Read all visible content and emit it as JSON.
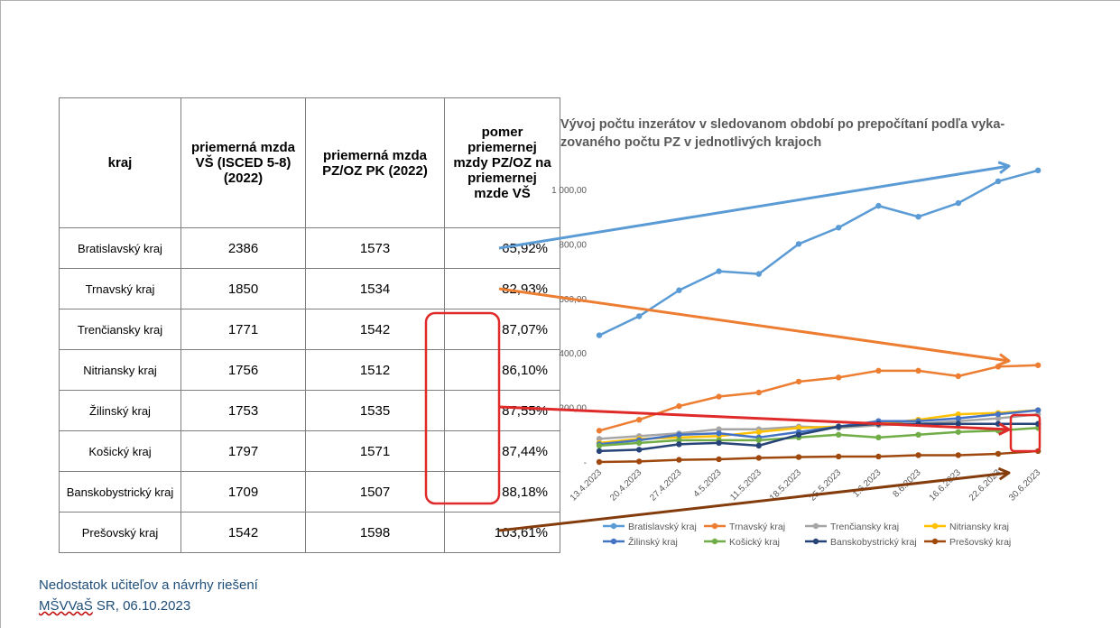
{
  "table": {
    "headers": {
      "kraj": "kraj",
      "mzda_vs": "priemerná mzda VŠ (ISCED 5-8) (2022)",
      "mzda_pz": "priemerná mzda PZ/OZ PK (2022)",
      "pomer": "pomer priemernej mzdy PZ/OZ na priemernej mzde VŠ"
    },
    "rows": [
      {
        "kraj": "Bratislavský kraj",
        "vs": "2386",
        "pz": "1573",
        "pomer": "65,92%"
      },
      {
        "kraj": "Trnavský kraj",
        "vs": "1850",
        "pz": "1534",
        "pomer": "82,93%"
      },
      {
        "kraj": "Trenčiansky kraj",
        "vs": "1771",
        "pz": "1542",
        "pomer": "87,07%"
      },
      {
        "kraj": "Nitriansky kraj",
        "vs": "1756",
        "pz": "1512",
        "pomer": "86,10%"
      },
      {
        "kraj": "Žilinský kraj",
        "vs": "1753",
        "pz": "1535",
        "pomer": "87,55%"
      },
      {
        "kraj": "Košický kraj",
        "vs": "1797",
        "pz": "1571",
        "pomer": "87,44%"
      },
      {
        "kraj": "Banskobystrický kraj",
        "vs": "1709",
        "pz": "1507",
        "pomer": "88,18%"
      },
      {
        "kraj": "Prešovský kraj",
        "vs": "1542",
        "pz": "1598",
        "pomer": "103,61%"
      }
    ]
  },
  "chart_data": {
    "type": "line",
    "title": "Vývoj počtu inzerátov v sledovanom období po prepočítaní podľa vyka- zovaného počtu PZ v jednotlivých krajoch",
    "xlabel": "",
    "ylabel": "",
    "ylim": [
      0,
      1000
    ],
    "grid": false,
    "legend": "bottom",
    "categories": [
      "13.4.2023",
      "20.4.2023",
      "27.4.2023",
      "4.5.2023",
      "11.5.2023",
      "18.5.2023",
      "25.5.2023",
      "1.6.2023",
      "8.6.2023",
      "16.6.2023",
      "22.6.2023",
      "30.6.2023"
    ],
    "y_ticks": [
      {
        "value": 1000,
        "label": "1 000,00"
      },
      {
        "value": 800,
        "label": "800,00"
      },
      {
        "value": 600,
        "label": "600,00"
      },
      {
        "value": 400,
        "label": "400,00"
      },
      {
        "value": 200,
        "label": "200,00"
      },
      {
        "value": 0,
        "label": "-"
      }
    ],
    "series": [
      {
        "name": "Bratislavský kraj",
        "color": "#5b9bd5",
        "values": [
          465,
          535,
          630,
          700,
          690,
          800,
          860,
          940,
          900,
          950,
          1030,
          1070
        ]
      },
      {
        "name": "Trnavský kraj",
        "color": "#ed7d31",
        "values": [
          115,
          155,
          205,
          240,
          255,
          295,
          310,
          335,
          335,
          315,
          350,
          355
        ]
      },
      {
        "name": "Trenčiansky kraj",
        "color": "#a5a5a5",
        "values": [
          85,
          95,
          105,
          120,
          120,
          130,
          125,
          135,
          140,
          150,
          160,
          175
        ]
      },
      {
        "name": "Nitriansky kraj",
        "color": "#ffc000",
        "values": [
          70,
          85,
          90,
          95,
          110,
          125,
          130,
          140,
          155,
          175,
          180,
          190
        ]
      },
      {
        "name": "Žilinský kraj",
        "color": "#4472c4",
        "values": [
          65,
          80,
          100,
          105,
          90,
          110,
          130,
          150,
          150,
          160,
          175,
          190
        ]
      },
      {
        "name": "Košický kraj",
        "color": "#70ad47",
        "values": [
          60,
          70,
          80,
          80,
          80,
          90,
          100,
          90,
          100,
          110,
          115,
          125
        ]
      },
      {
        "name": "Banskobystrický kraj",
        "color": "#264478",
        "values": [
          40,
          45,
          65,
          70,
          60,
          100,
          130,
          140,
          140,
          140,
          140,
          140
        ]
      },
      {
        "name": "Prešovský kraj",
        "color": "#9e480e",
        "values": [
          0,
          2,
          8,
          10,
          15,
          18,
          20,
          20,
          25,
          25,
          30,
          40
        ]
      }
    ],
    "overlay_arrows": [
      {
        "color": "#5b9bd5"
      },
      {
        "color": "#ed7d31"
      },
      {
        "color": "#e02a2a"
      },
      {
        "color": "#843c0c"
      }
    ],
    "highlight_color": "#e02a2a"
  },
  "footer": {
    "line1": "Nedostatok učiteľov a návrhy riešení",
    "line2_underlined": "MŠVVaŠ",
    "line2_rest": " SR, 06.10.2023"
  }
}
